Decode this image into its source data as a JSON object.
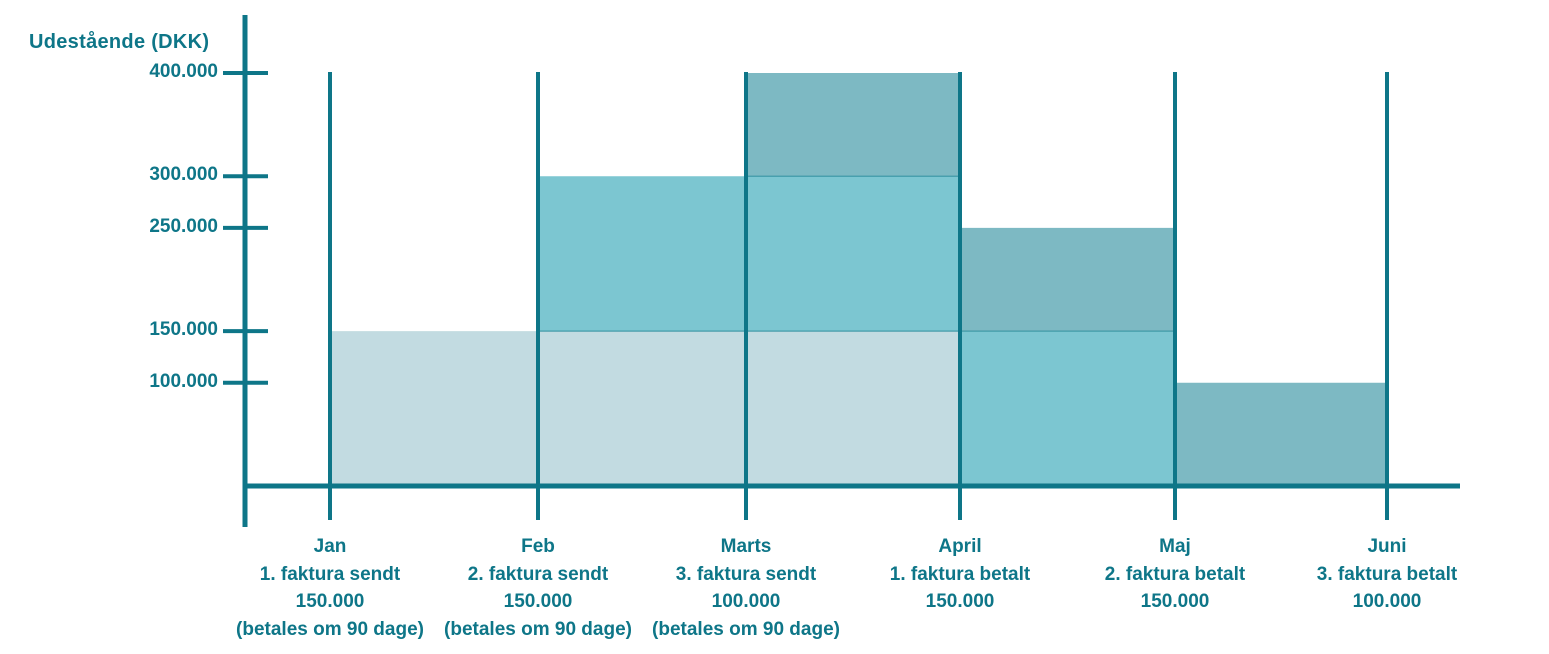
{
  "colors": {
    "axis_teal": "#0e7688",
    "separator_line": "#2e8e9e",
    "invoice1_fill": "#c2dbe1",
    "invoice2_fill": "#7cc6d1",
    "invoice3_fill": "#7db9c3",
    "background": "#ffffff"
  },
  "chart_data": {
    "type": "area",
    "variant": "stacked-step-area",
    "title": "",
    "ylabel": "Udestående (DKK)",
    "xlabel": "",
    "ylim": [
      0,
      400000
    ],
    "grid": "vertical-month-lines",
    "legend_position": "none",
    "yticks": [
      {
        "value": 400000,
        "label": "400.000"
      },
      {
        "value": 300000,
        "label": "300.000"
      },
      {
        "value": 250000,
        "label": "250.000"
      },
      {
        "value": 150000,
        "label": "150.000"
      },
      {
        "value": 100000,
        "label": "100.000"
      }
    ],
    "x_categories": [
      {
        "label": "Jan",
        "sublabels": [
          "1. faktura sendt",
          "150.000",
          "(betales om 90 dage)"
        ]
      },
      {
        "label": "Feb",
        "sublabels": [
          "2. faktura sendt",
          "150.000",
          "(betales om 90 dage)"
        ]
      },
      {
        "label": "Marts",
        "sublabels": [
          "3. faktura sendt",
          "100.000",
          "(betales om 90 dage)"
        ]
      },
      {
        "label": "April",
        "sublabels": [
          "1. faktura betalt",
          "150.000"
        ]
      },
      {
        "label": "Maj",
        "sublabels": [
          "2. faktura betalt",
          "150.000"
        ]
      },
      {
        "label": "Juni",
        "sublabels": [
          "3. faktura betalt",
          "100.000"
        ]
      }
    ],
    "outstanding_between_months": [
      {
        "from": "Jan",
        "to": "Feb",
        "total": 150000
      },
      {
        "from": "Feb",
        "to": "Marts",
        "total": 300000
      },
      {
        "from": "Marts",
        "to": "April",
        "total": 400000
      },
      {
        "from": "April",
        "to": "Maj",
        "total": 250000
      },
      {
        "from": "Maj",
        "to": "Juni",
        "total": 100000
      }
    ],
    "series": [
      {
        "name": "1. faktura 150.000",
        "color": "#c2dbe1",
        "segments": [
          {
            "from": "Jan",
            "to": "April",
            "y0": 0,
            "y1": 150000
          }
        ]
      },
      {
        "name": "2. faktura 150.000",
        "color": "#7cc6d1",
        "segments": [
          {
            "from": "Feb",
            "to": "April",
            "y0": 150000,
            "y1": 300000
          },
          {
            "from": "April",
            "to": "Maj",
            "y0": 0,
            "y1": 150000
          }
        ]
      },
      {
        "name": "3. faktura 100.000",
        "color": "#7db9c3",
        "segments": [
          {
            "from": "Marts",
            "to": "April",
            "y0": 300000,
            "y1": 400000
          },
          {
            "from": "April",
            "to": "Maj",
            "y0": 150000,
            "y1": 250000
          },
          {
            "from": "Maj",
            "to": "Juni",
            "y0": 0,
            "y1": 100000
          }
        ]
      }
    ]
  }
}
